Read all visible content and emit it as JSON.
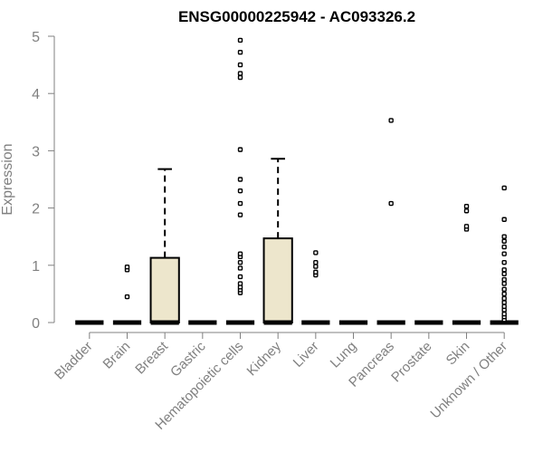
{
  "chart_data": {
    "type": "box",
    "title": "ENSG00000225942 - AC093326.2",
    "ylabel": "Expression",
    "xlabel": "",
    "ylim": [
      0,
      5
    ],
    "yticks": [
      0,
      1,
      2,
      3,
      4,
      5
    ],
    "grid": false,
    "colors": {
      "box_fill": "#EDE6CC",
      "axis": "#808080",
      "text": "#808080",
      "title": "#000000"
    },
    "categories": [
      "Bladder",
      "Brain",
      "Breast",
      "Gastric",
      "Hematopoietic cells",
      "Kidney",
      "Liver",
      "Lung",
      "Pancreas",
      "Prostate",
      "Skin",
      "Unknown / Other"
    ],
    "boxes": [
      {
        "category": "Bladder",
        "min": 0,
        "q1": 0,
        "median": 0,
        "q3": 0,
        "max": 0,
        "outliers": []
      },
      {
        "category": "Brain",
        "min": 0,
        "q1": 0,
        "median": 0,
        "q3": 0,
        "max": 0,
        "outliers": [
          0.45,
          0.92,
          0.97
        ]
      },
      {
        "category": "Breast",
        "min": 0,
        "q1": 0,
        "median": 0,
        "q3": 1.13,
        "max": 2.68,
        "outliers": []
      },
      {
        "category": "Gastric",
        "min": 0,
        "q1": 0,
        "median": 0,
        "q3": 0,
        "max": 0,
        "outliers": []
      },
      {
        "category": "Hematopoietic cells",
        "min": 0,
        "q1": 0,
        "median": 0,
        "q3": 0,
        "max": 0,
        "outliers": [
          0.52,
          0.57,
          0.62,
          0.68,
          0.8,
          0.95,
          1.05,
          1.15,
          1.2,
          1.88,
          2.08,
          2.3,
          2.5,
          3.02,
          4.28,
          4.35,
          4.5,
          4.72,
          4.93
        ]
      },
      {
        "category": "Kidney",
        "min": 0,
        "q1": 0,
        "median": 0,
        "q3": 1.47,
        "max": 2.86,
        "outliers": []
      },
      {
        "category": "Liver",
        "min": 0,
        "q1": 0,
        "median": 0,
        "q3": 0,
        "max": 0,
        "outliers": [
          0.83,
          0.88,
          0.98,
          1.05,
          1.22
        ]
      },
      {
        "category": "Lung",
        "min": 0,
        "q1": 0,
        "median": 0,
        "q3": 0,
        "max": 0,
        "outliers": []
      },
      {
        "category": "Pancreas",
        "min": 0,
        "q1": 0,
        "median": 0,
        "q3": 0,
        "max": 0,
        "outliers": [
          2.08,
          3.53
        ]
      },
      {
        "category": "Prostate",
        "min": 0,
        "q1": 0,
        "median": 0,
        "q3": 0,
        "max": 0,
        "outliers": []
      },
      {
        "category": "Skin",
        "min": 0,
        "q1": 0,
        "median": 0,
        "q3": 0,
        "max": 0,
        "outliers": [
          1.63,
          1.68,
          1.95,
          2.03
        ]
      },
      {
        "category": "Unknown / Other",
        "min": 0,
        "q1": 0,
        "median": 0,
        "q3": 0,
        "max": 0,
        "outliers": [
          0.05,
          0.1,
          0.15,
          0.22,
          0.28,
          0.35,
          0.42,
          0.5,
          0.58,
          0.68,
          0.75,
          0.85,
          0.92,
          1.05,
          1.2,
          1.32,
          1.42,
          1.5,
          1.8,
          2.35
        ]
      }
    ]
  }
}
